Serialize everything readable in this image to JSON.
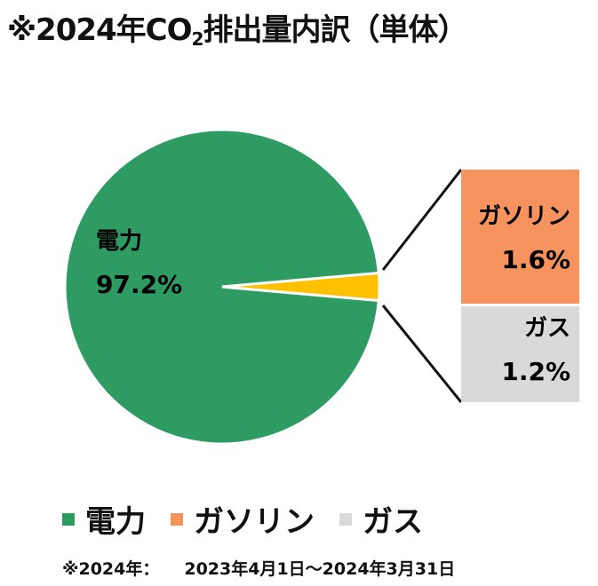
{
  "title_main": "※2024年CO",
  "title_sub": "2",
  "title_rest": "排出量内訳（単体）",
  "colors": {
    "electricity": "#2e9b62",
    "gasoline": "#f7935f",
    "gas": "#d9d9d9",
    "pie_gas_total": "#ffc000",
    "line": "#111111"
  },
  "chart_data": {
    "type": "pie",
    "title": "※2024年CO2排出量内訳（単体）",
    "slices": [
      {
        "name": "電力",
        "value": 97.2,
        "label": "97.2%"
      },
      {
        "name": "ガソリン・ガス",
        "value": 2.8
      }
    ],
    "breakdown": [
      {
        "name": "ガソリン",
        "value": 1.6,
        "label": "1.6%"
      },
      {
        "name": "ガス",
        "value": 1.2,
        "label": "1.2%"
      }
    ]
  },
  "labels": {
    "electricity_name": "電力",
    "electricity_pct": "97.2%",
    "gasoline_name": "ガソリン",
    "gasoline_pct": "1.6%",
    "gas_name": "ガス",
    "gas_pct": "1.2%"
  },
  "legend": [
    {
      "label": "電力"
    },
    {
      "label": "ガソリン"
    },
    {
      "label": "ガス"
    }
  ],
  "footnote": {
    "prefix": "※2024年：",
    "period": "2023年4月1日～2024年3月31日"
  }
}
